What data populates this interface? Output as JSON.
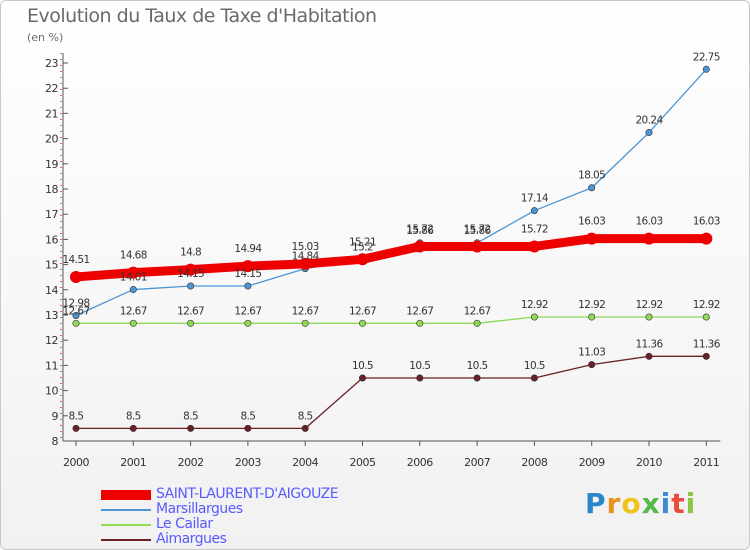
{
  "chart_data": {
    "type": "line",
    "title": "Evolution du Taux de Taxe d'Habitation",
    "subtitle": "(en %)",
    "xlabel": "",
    "ylabel": "",
    "ylim": [
      8,
      23
    ],
    "yticks": [
      "8",
      "9",
      "10",
      "11",
      "12",
      "13",
      "14",
      "15",
      "16",
      "17",
      "18",
      "19",
      "20",
      "21",
      "22",
      "23"
    ],
    "categories": [
      "2000",
      "2001",
      "2002",
      "2003",
      "2004",
      "2005",
      "2006",
      "2007",
      "2008",
      "2009",
      "2010",
      "2011"
    ],
    "series": [
      {
        "name": "SAINT-LAURENT-D'AIGOUZE",
        "color": "#ee0000",
        "values": [
          14.51,
          14.68,
          14.8,
          14.94,
          15.03,
          15.21,
          15.72,
          15.72,
          15.72,
          16.03,
          16.03,
          16.03
        ],
        "labels": [
          "14.51",
          "14.68",
          "14.8",
          "14.94",
          "15.03",
          "15.21",
          "15.72",
          "15.72",
          "15.72",
          "16.03",
          "16.03",
          "16.03"
        ]
      },
      {
        "name": "Marsillargues",
        "color": "#4d96d6",
        "values": [
          12.98,
          14.01,
          14.15,
          14.15,
          14.84,
          15.2,
          15.86,
          15.86,
          17.14,
          18.05,
          20.24,
          22.75
        ],
        "labels": [
          "12.98",
          "14.01",
          "14.15",
          "14.15",
          "14.84",
          "15.2",
          "15.86",
          "15.86",
          "17.14",
          "18.05",
          "20.24",
          "22.75"
        ]
      },
      {
        "name": "Le Cailar",
        "color": "#8fd957",
        "values": [
          12.67,
          12.67,
          12.67,
          12.67,
          12.67,
          12.67,
          12.67,
          12.67,
          12.92,
          12.92,
          12.92,
          12.92
        ],
        "labels": [
          "12.67",
          "12.67",
          "12.67",
          "12.67",
          "12.67",
          "12.67",
          "12.67",
          "12.67",
          "12.92",
          "12.92",
          "12.92",
          "12.92"
        ]
      },
      {
        "name": "Aimargues",
        "color": "#6b1f26",
        "values": [
          8.5,
          8.5,
          8.5,
          8.5,
          8.5,
          10.5,
          10.5,
          10.5,
          10.5,
          11.03,
          11.36,
          11.36
        ],
        "labels": [
          "8.5",
          "8.5",
          "8.5",
          "8.5",
          "8.5",
          "10.5",
          "10.5",
          "10.5",
          "10.5",
          "11.03",
          "11.36",
          "11.36"
        ]
      }
    ],
    "legend": "bottom-left",
    "grid": false
  },
  "brand": {
    "letters": [
      "P",
      "r",
      "o",
      "x",
      "i",
      "t",
      "i"
    ],
    "colors": [
      "#2a86c8",
      "#e8921e",
      "#f2c21c",
      "#57b84a",
      "#3f8ad3",
      "#e94c3d",
      "#8cc63f"
    ]
  }
}
